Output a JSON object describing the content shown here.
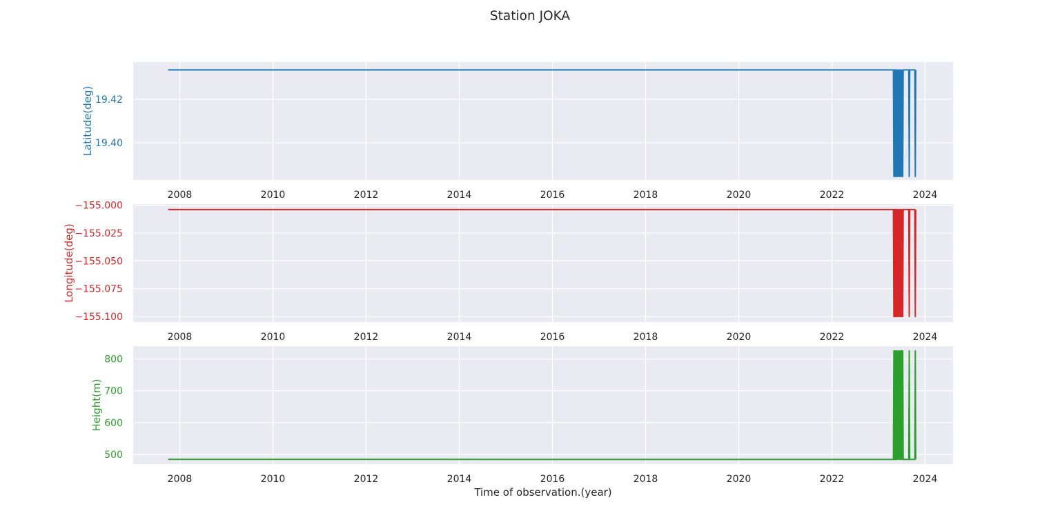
{
  "figure": {
    "title": "Station JOKA",
    "background": "#ffffff",
    "axes_facecolor": "#eaeaf2",
    "grid_color": "#ffffff"
  },
  "chart_data": [
    {
      "type": "line",
      "ylabel": "Latitude(deg)",
      "color": "#1f77b4",
      "xlabel": "",
      "xlim": [
        2007.0,
        2024.6
      ],
      "ylim": [
        19.383,
        19.437
      ],
      "x_ticks": [
        2008,
        2010,
        2012,
        2014,
        2016,
        2018,
        2020,
        2022,
        2024
      ],
      "x_tick_labels": [
        "2008",
        "2010",
        "2012",
        "2014",
        "2016",
        "2018",
        "2020",
        "2022",
        "2024"
      ],
      "y_ticks": [
        19.4,
        19.42
      ],
      "y_tick_labels": [
        "19.40",
        "19.42"
      ],
      "grid": true,
      "series": [
        {
          "x": [
            2007.75,
            2023.32,
            2023.33,
            2023.34,
            2023.35,
            2023.36,
            2023.37,
            2023.38,
            2023.39,
            2023.4,
            2023.42,
            2023.43,
            2023.45,
            2023.46,
            2023.47,
            2023.48,
            2023.5,
            2023.51,
            2023.52,
            2023.53,
            2023.55,
            2023.65,
            2023.66,
            2023.67,
            2023.78,
            2023.79,
            2023.8
          ],
          "y": [
            19.4334,
            19.4334,
            19.3846,
            19.4334,
            19.3846,
            19.4334,
            19.3846,
            19.4334,
            19.3846,
            19.4334,
            19.3846,
            19.4334,
            19.3846,
            19.4334,
            19.3846,
            19.4334,
            19.3846,
            19.4334,
            19.3846,
            19.4334,
            19.4334,
            19.4334,
            19.3846,
            19.4334,
            19.4334,
            19.3846,
            19.4334
          ]
        }
      ]
    },
    {
      "type": "line",
      "ylabel": "Longitude(deg)",
      "color": "#d62728",
      "xlabel": "",
      "xlim": [
        2007.0,
        2024.6
      ],
      "ylim": [
        -155.105,
        -154.999
      ],
      "x_ticks": [
        2008,
        2010,
        2012,
        2014,
        2016,
        2018,
        2020,
        2022,
        2024
      ],
      "x_tick_labels": [
        "2008",
        "2010",
        "2012",
        "2014",
        "2016",
        "2018",
        "2020",
        "2022",
        "2024"
      ],
      "y_ticks": [
        -155.1,
        -155.075,
        -155.05,
        -155.025,
        -155.0
      ],
      "y_tick_labels": [
        "−155.100",
        "−155.075",
        "−155.050",
        "−155.025",
        "−155.000"
      ],
      "grid": true,
      "series": [
        {
          "x": [
            2007.75,
            2023.32,
            2023.33,
            2023.34,
            2023.35,
            2023.36,
            2023.37,
            2023.38,
            2023.39,
            2023.4,
            2023.42,
            2023.43,
            2023.45,
            2023.46,
            2023.47,
            2023.48,
            2023.5,
            2023.51,
            2023.52,
            2023.53,
            2023.55,
            2023.65,
            2023.66,
            2023.67,
            2023.78,
            2023.79,
            2023.8
          ],
          "y": [
            -155.0039,
            -155.0039,
            -155.1001,
            -155.0039,
            -155.1001,
            -155.0039,
            -155.1001,
            -155.0039,
            -155.1001,
            -155.0039,
            -155.1001,
            -155.0039,
            -155.1001,
            -155.0039,
            -155.1001,
            -155.0039,
            -155.1001,
            -155.0039,
            -155.1001,
            -155.0039,
            -155.0039,
            -155.0039,
            -155.1001,
            -155.0039,
            -155.0039,
            -155.1001,
            -155.0039
          ]
        }
      ]
    },
    {
      "type": "line",
      "ylabel": "Height(m)",
      "color": "#2ca02c",
      "xlabel": "Time of observation.(year)",
      "xlim": [
        2007.0,
        2024.6
      ],
      "ylim": [
        470,
        840
      ],
      "x_ticks": [
        2008,
        2010,
        2012,
        2014,
        2016,
        2018,
        2020,
        2022,
        2024
      ],
      "x_tick_labels": [
        "2008",
        "2010",
        "2012",
        "2014",
        "2016",
        "2018",
        "2020",
        "2022",
        "2024"
      ],
      "y_ticks": [
        500,
        600,
        700,
        800
      ],
      "y_tick_labels": [
        "500",
        "600",
        "700",
        "800"
      ],
      "grid": true,
      "series": [
        {
          "x": [
            2007.75,
            2015.0,
            2023.32,
            2023.33,
            2023.34,
            2023.35,
            2023.36,
            2023.37,
            2023.38,
            2023.39,
            2023.4,
            2023.42,
            2023.43,
            2023.45,
            2023.46,
            2023.47,
            2023.48,
            2023.5,
            2023.51,
            2023.52,
            2023.53,
            2023.55,
            2023.65,
            2023.66,
            2023.67,
            2023.78,
            2023.79,
            2023.8
          ],
          "y": [
            485.0,
            484.7,
            484.5,
            825.0,
            484.5,
            825.0,
            484.5,
            825.0,
            484.5,
            825.0,
            484.5,
            825.0,
            484.5,
            825.0,
            484.5,
            825.0,
            484.5,
            825.0,
            484.5,
            825.0,
            484.5,
            484.5,
            484.5,
            825.0,
            484.5,
            484.5,
            825.0,
            484.5
          ]
        }
      ]
    }
  ]
}
